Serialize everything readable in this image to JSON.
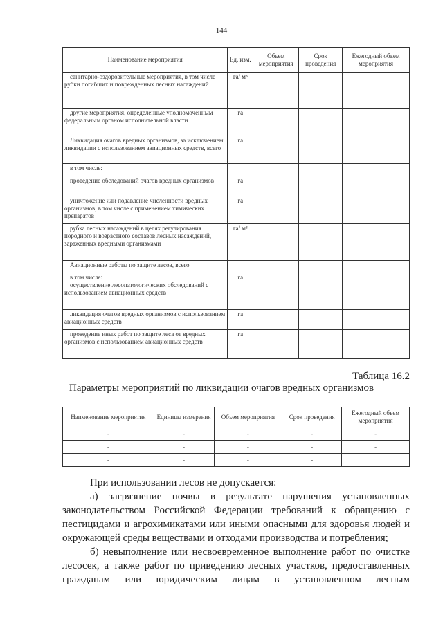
{
  "page_number": "144",
  "table1": {
    "headers": [
      "Наименование мероприятия",
      "Ед. изм.",
      "Объем мероприятия",
      "Срок проведения",
      "Ежегодный объем мероприятия"
    ],
    "rows": [
      {
        "name": "санитарно-оздоровительные мероприятия, в том числе рубки погибших и поврежденных лесных насаждений",
        "unit": "га/ м³"
      },
      {
        "name": "другие мероприятия, определенные уполномоченным федеральным органом исполнительной власти",
        "unit": "га"
      },
      {
        "name": "Ликвидация очагов вредных организмов, за исключением ликвидации с использованием авиационных средств, всего",
        "unit": "га"
      },
      {
        "name": "в том числе:",
        "unit": ""
      },
      {
        "name": "проведение обследований очагов вредных организмов",
        "unit": "га"
      },
      {
        "name": "уничтожение или подавление численности вредных организмов, в том числе с применением химических препаратов",
        "unit": "га"
      },
      {
        "name": "рубка лесных насаждений в целях регулирования породного и возрастного составов лесных насаждений, зараженных вредными организмами",
        "unit": "га/ м³"
      },
      {
        "name": "Авиационные работы по защите лесов, всего",
        "unit": ""
      },
      {
        "name": "в том числе:",
        "name2": "осуществление лесопатологических обследований с использованием авиационных средств",
        "unit": "га"
      },
      {
        "name": "ликвидация очагов вредных организмов с использованием авиационных средств",
        "unit": "га"
      },
      {
        "name": "проведение иных работ по защите леса от вредных организмов с использованием авиационных средств",
        "unit": "га"
      }
    ]
  },
  "table2": {
    "label": "Таблица 16.2",
    "title": "Параметры мероприятий по ликвидации очагов вредных организмов",
    "headers": [
      "Наименование мероприятия",
      "Единицы измерения",
      "Объем мероприятия",
      "Срок проведения",
      "Ежегодный объем мероприятия"
    ],
    "rows": [
      [
        "-",
        "-",
        "-",
        "-",
        "-"
      ],
      [
        "-",
        "-",
        "-",
        "-",
        "-"
      ],
      [
        "-",
        "-",
        "-",
        "-",
        ""
      ]
    ]
  },
  "body": {
    "p1": "При использовании лесов не допускается:",
    "p2": "а) загрязнение почвы в результате нарушения установленных законодательством Российской Федерации требований к обращению с пестицидами и агрохимикатами или иными опасными для здоровья людей и окружающей среды веществами и отходами производства и потребления;",
    "p3": "б) невыполнение или несвоевременное выполнение работ по очистке лесосек, а также работ по приведению лесных участков, предоставленных гражданам или юридическим лицам в установленном лесным"
  }
}
